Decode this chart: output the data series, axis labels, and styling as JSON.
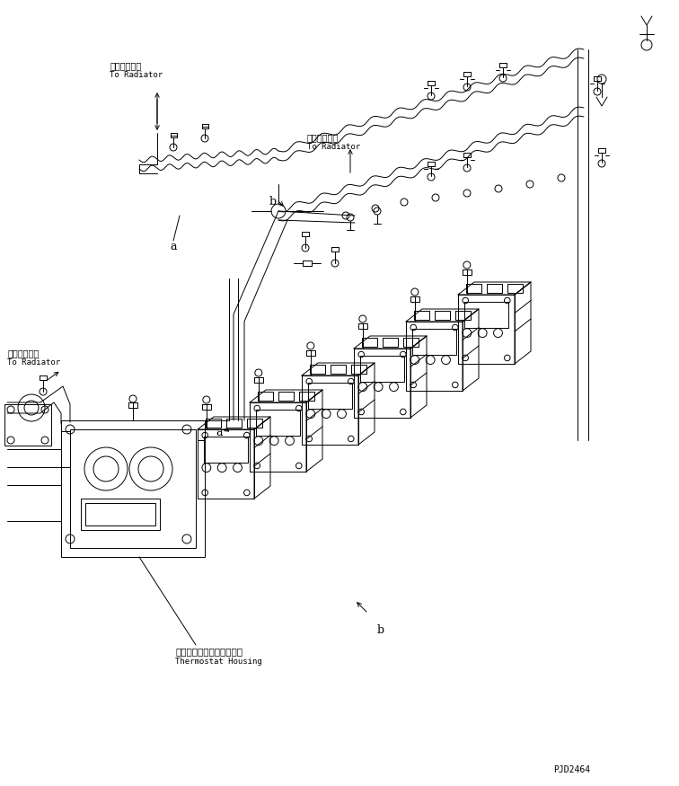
{
  "bg_color": "#ffffff",
  "fig_width": 7.56,
  "fig_height": 8.75,
  "dpi": 100,
  "labels": {
    "radiator_top_left_jp": "ラジェータへ",
    "radiator_top_left_en": "To Radiator",
    "radiator_mid_jp": "ラジェータへ",
    "radiator_mid_en": "To Radiator",
    "radiator_left_jp": "ラジェータへ",
    "radiator_left_en": "To Radiator",
    "thermostat_jp": "サーモスタットハウジング",
    "thermostat_en": "Thermostat Housing",
    "label_a1": "a",
    "label_a2": "a",
    "label_b1": "b",
    "label_b2": "b",
    "part_number": "PJD2464"
  },
  "line_color": "#000000",
  "line_width": 0.7
}
